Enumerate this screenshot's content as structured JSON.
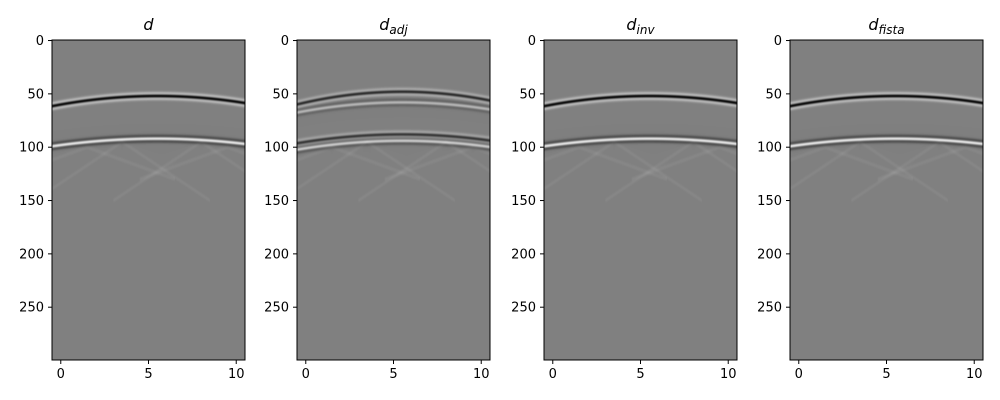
{
  "chart_data": [
    {
      "type": "heatmap",
      "title": "d",
      "title_main": "d",
      "title_sub": "",
      "xlim": [
        -0.5,
        10.5
      ],
      "ylim": [
        299.5,
        -0.5
      ],
      "xticks": [
        0,
        5,
        10
      ],
      "yticks": [
        0,
        50,
        100,
        150,
        200,
        250
      ],
      "xtick_labels": [
        "0",
        "5",
        "10"
      ],
      "ytick_labels": [
        "0",
        "50",
        "100",
        "150",
        "200",
        "250"
      ],
      "colormap": "gray",
      "events": [
        {
          "apex_x": 5.5,
          "apex_t": 52,
          "end_t": 60,
          "polarity": -1,
          "amplitude": 1.0
        },
        {
          "apex_x": 5.5,
          "apex_t": 92,
          "end_t": 98,
          "polarity": 1,
          "amplitude": 0.85
        }
      ],
      "faint_crossing_arcs": true,
      "background_level": 0.5
    },
    {
      "type": "heatmap",
      "title": "d_adj",
      "title_main": "d",
      "title_sub": "adj",
      "xlim": [
        -0.5,
        10.5
      ],
      "ylim": [
        299.5,
        -0.5
      ],
      "xticks": [
        0,
        5,
        10
      ],
      "yticks": [
        0,
        50,
        100,
        150,
        200,
        250
      ],
      "xtick_labels": [
        "0",
        "5",
        "10"
      ],
      "ytick_labels": [
        "0",
        "50",
        "100",
        "150",
        "200",
        "250"
      ],
      "colormap": "gray",
      "events": [
        {
          "apex_x": 5.5,
          "apex_t": 48,
          "end_t": 58,
          "polarity": -1,
          "amplitude": 0.7
        },
        {
          "apex_x": 5.5,
          "apex_t": 58,
          "end_t": 66,
          "polarity": 1,
          "amplitude": 0.45
        },
        {
          "apex_x": 5.5,
          "apex_t": 88,
          "end_t": 95,
          "polarity": -1,
          "amplitude": 0.6
        },
        {
          "apex_x": 5.5,
          "apex_t": 94,
          "end_t": 101,
          "polarity": 1,
          "amplitude": 0.6
        }
      ],
      "faint_crossing_arcs": true,
      "background_level": 0.5
    },
    {
      "type": "heatmap",
      "title": "d_inv",
      "title_main": "d",
      "title_sub": "inv",
      "xlim": [
        -0.5,
        10.5
      ],
      "ylim": [
        299.5,
        -0.5
      ],
      "xticks": [
        0,
        5,
        10
      ],
      "yticks": [
        0,
        50,
        100,
        150,
        200,
        250
      ],
      "xtick_labels": [
        "0",
        "5",
        "10"
      ],
      "ytick_labels": [
        "0",
        "50",
        "100",
        "150",
        "200",
        "250"
      ],
      "colormap": "gray",
      "events": [
        {
          "apex_x": 5.5,
          "apex_t": 52,
          "end_t": 60,
          "polarity": -1,
          "amplitude": 1.0
        },
        {
          "apex_x": 5.5,
          "apex_t": 92,
          "end_t": 98,
          "polarity": 1,
          "amplitude": 0.85
        }
      ],
      "faint_crossing_arcs": true,
      "background_level": 0.5
    },
    {
      "type": "heatmap",
      "title": "d_fista",
      "title_main": "d",
      "title_sub": "fista",
      "xlim": [
        -0.5,
        10.5
      ],
      "ylim": [
        299.5,
        -0.5
      ],
      "xticks": [
        0,
        5,
        10
      ],
      "yticks": [
        0,
        50,
        100,
        150,
        200,
        250
      ],
      "xtick_labels": [
        "0",
        "5",
        "10"
      ],
      "ytick_labels": [
        "0",
        "50",
        "100",
        "150",
        "200",
        "250"
      ],
      "colormap": "gray",
      "events": [
        {
          "apex_x": 5.5,
          "apex_t": 52,
          "end_t": 60,
          "polarity": -1,
          "amplitude": 1.0
        },
        {
          "apex_x": 5.5,
          "apex_t": 92,
          "end_t": 98,
          "polarity": 1,
          "amplitude": 0.85
        }
      ],
      "faint_crossing_arcs": true,
      "background_level": 0.5
    }
  ]
}
